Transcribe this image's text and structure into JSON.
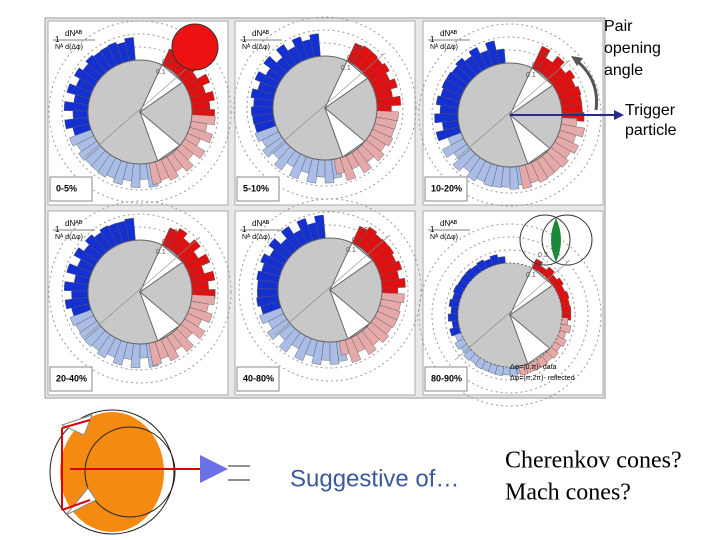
{
  "annotations": {
    "pair_opening_angle": [
      "Pair",
      "opening",
      "angle"
    ],
    "trigger_particle": [
      "Trigger",
      "particle"
    ]
  },
  "panel_axis_label": {
    "numerator": "dNᴬᴮ",
    "denominator": "Nᴬ d(Δφ)",
    "one": "1"
  },
  "ring_labels": [
    "0.3",
    "0.2",
    "0.1"
  ],
  "panels": [
    {
      "label": "0-5%"
    },
    {
      "label": "5-10%"
    },
    {
      "label": "10-20%"
    },
    {
      "label": "20-40%"
    },
    {
      "label": "40-80%"
    },
    {
      "label": "80-90%"
    }
  ],
  "legend": [
    "Δφ=(0,π)- data",
    "Δφ=(π,2π)- reflected"
  ],
  "bottom": {
    "suggestive": "Suggestive of…",
    "cherenkov": "Cherenkov cones?",
    "mach": "Mach cones?"
  }
}
